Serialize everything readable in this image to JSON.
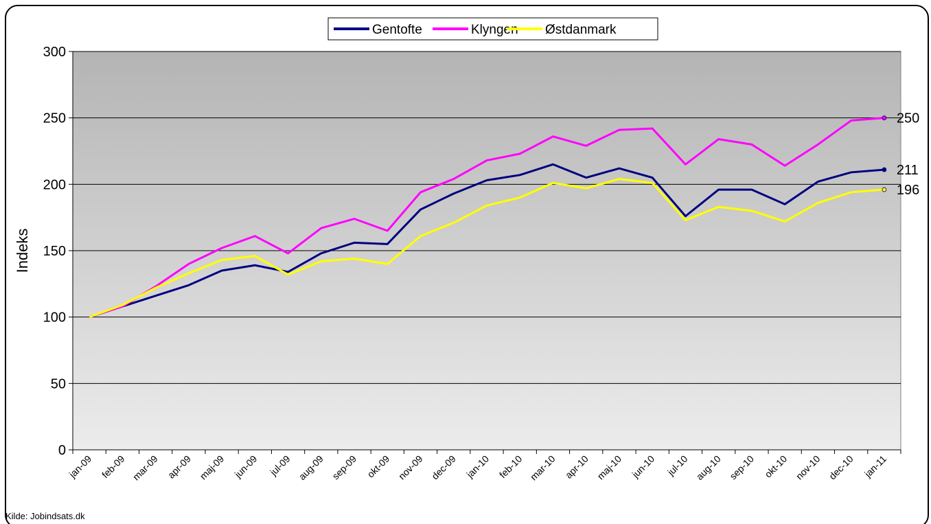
{
  "chart_data": {
    "type": "line",
    "ylabel": "Indeks",
    "source": "Kilde: Jobindsats.dk",
    "categories": [
      "jan-09",
      "feb-09",
      "mar-09",
      "apr-09",
      "maj-09",
      "jun-09",
      "jul-09",
      "aug-09",
      "sep-09",
      "okt-09",
      "nov-09",
      "dec-09",
      "jan-10",
      "feb-10",
      "mar-10",
      "apr-10",
      "maj-10",
      "jun-10",
      "jul-10",
      "aug-10",
      "sep-10",
      "okt-10",
      "nov-10",
      "dec-10",
      "jan-11"
    ],
    "series": [
      {
        "name": "Gentofte",
        "color": "#000080",
        "values": [
          100,
          108,
          116,
          124,
          135,
          139,
          134,
          148,
          156,
          155,
          181,
          193,
          203,
          207,
          215,
          205,
          212,
          205,
          176,
          196,
          196,
          185,
          202,
          209,
          211
        ]
      },
      {
        "name": "Klyngen",
        "color": "#ff00ff",
        "values": [
          100,
          108,
          123,
          140,
          152,
          161,
          148,
          167,
          174,
          165,
          194,
          204,
          218,
          223,
          236,
          229,
          241,
          242,
          215,
          234,
          230,
          214,
          230,
          248,
          250
        ]
      },
      {
        "name": "Østdanmark",
        "color": "#ffff00",
        "values": [
          100,
          109,
          122,
          133,
          143,
          146,
          132,
          142,
          144,
          140,
          161,
          171,
          184,
          190,
          201,
          197,
          204,
          201,
          173,
          183,
          180,
          172,
          186,
          194,
          196
        ]
      }
    ],
    "ylim": [
      0,
      300
    ],
    "yticks": [
      0,
      50,
      100,
      150,
      200,
      250,
      300
    ],
    "grid": true,
    "legend": "top"
  }
}
